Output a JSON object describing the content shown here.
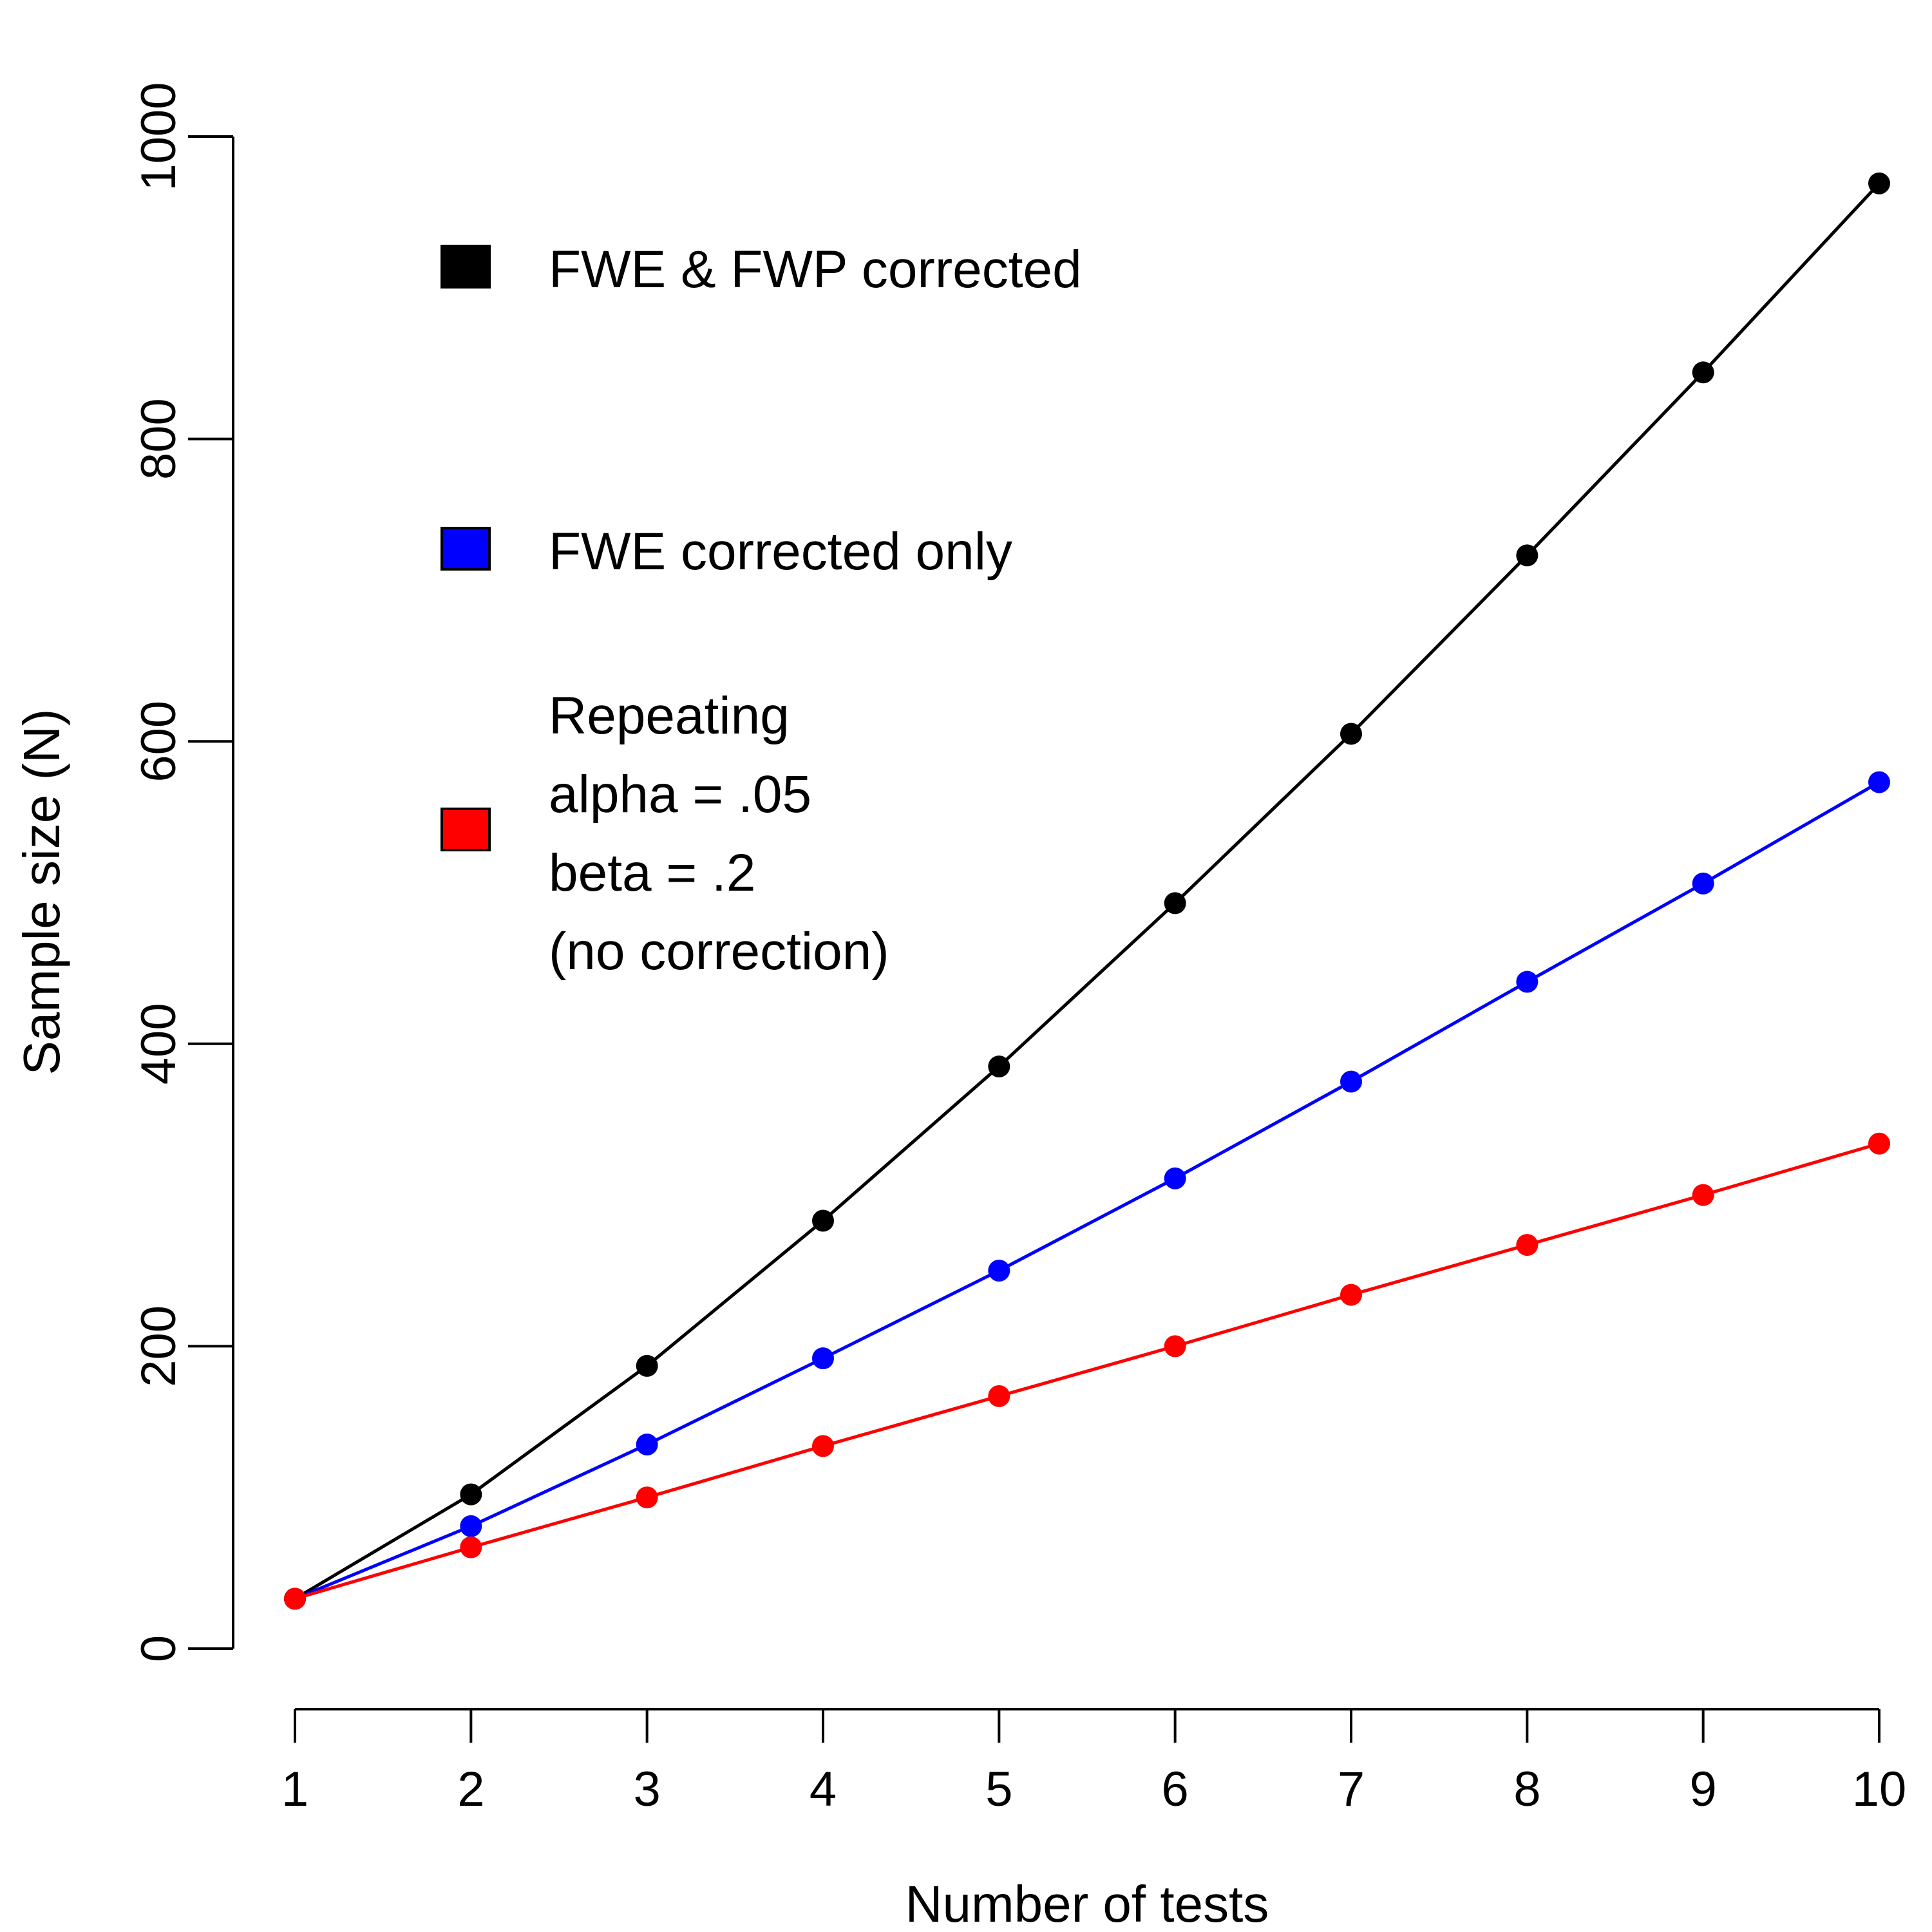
{
  "chart_data": {
    "type": "line",
    "title": "",
    "xlabel": "Number of tests",
    "ylabel": "Sample size (N)",
    "x": [
      1,
      2,
      3,
      4,
      5,
      6,
      7,
      8,
      9,
      10
    ],
    "xticks": [
      "1",
      "2",
      "3",
      "4",
      "5",
      "6",
      "7",
      "8",
      "9",
      "10"
    ],
    "yticks": [
      "0",
      "200",
      "400",
      "600",
      "800",
      "1000"
    ],
    "xlim": [
      1,
      10
    ],
    "ylim": [
      0,
      1000
    ],
    "grid": false,
    "legend_position": "top-left",
    "series": [
      {
        "name": "FWE & FWP corrected",
        "color": "#000000",
        "values": [
          33,
          102,
          187,
          283,
          385,
          493,
          605,
          723,
          844,
          969
        ]
      },
      {
        "name": "FWE corrected only",
        "color": "#0000ff",
        "values": [
          33,
          81,
          135,
          192,
          250,
          311,
          375,
          441,
          506,
          573
        ]
      },
      {
        "name": "Repeating\nalpha = .05\nbeta = .2\n(no correction)",
        "color": "#ff0000",
        "values": [
          33,
          67,
          100,
          134,
          167,
          200,
          234,
          267,
          300,
          334
        ]
      }
    ]
  }
}
